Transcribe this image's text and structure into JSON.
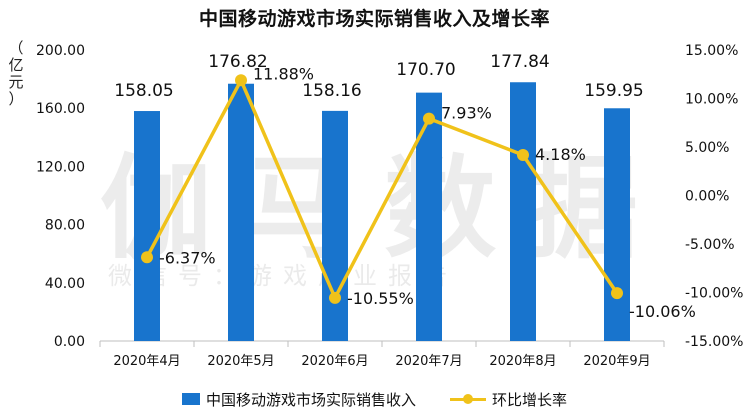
{
  "chart_data": {
    "type": "bar",
    "title": "中国移动游戏市场实际销售收入及增长率",
    "ylabel": "（亿元）",
    "ylabel_chars": [
      "（",
      "亿",
      "元",
      "）"
    ],
    "categories": [
      "2020年4月",
      "2020年5月",
      "2020年6月",
      "2020年7月",
      "2020年8月",
      "2020年9月"
    ],
    "series": [
      {
        "name": "中国移动游戏市场实际销售收入",
        "type": "bar",
        "axis": "left",
        "values": [
          158.05,
          176.82,
          158.16,
          170.7,
          177.84,
          159.95
        ],
        "labels": [
          "158.05",
          "176.82",
          "158.16",
          "170.70",
          "177.84",
          "159.95"
        ],
        "color": "#1874cd"
      },
      {
        "name": "环比增长率",
        "type": "line",
        "axis": "right",
        "values": [
          -6.37,
          11.88,
          -10.55,
          7.93,
          4.18,
          -10.06
        ],
        "labels": [
          "-6.37%",
          "11.88%",
          "-10.55%",
          "7.93%",
          "4.18%",
          "-10.06%"
        ],
        "color": "#f0c21a"
      }
    ],
    "ylim_left": [
      0,
      200
    ],
    "yticks_left": [
      "0.00",
      "40.00",
      "80.00",
      "120.00",
      "160.00",
      "200.00"
    ],
    "ylim_right": [
      -15,
      15
    ],
    "yticks_right": [
      "-15.00%",
      "-10.00%",
      "-5.00%",
      "0.00%",
      "5.00%",
      "10.00%",
      "15.00%"
    ],
    "grid": false,
    "legend_position": "bottom"
  },
  "watermark": {
    "main": "伽马数据",
    "sub": "微信号：游戏产业报告"
  }
}
